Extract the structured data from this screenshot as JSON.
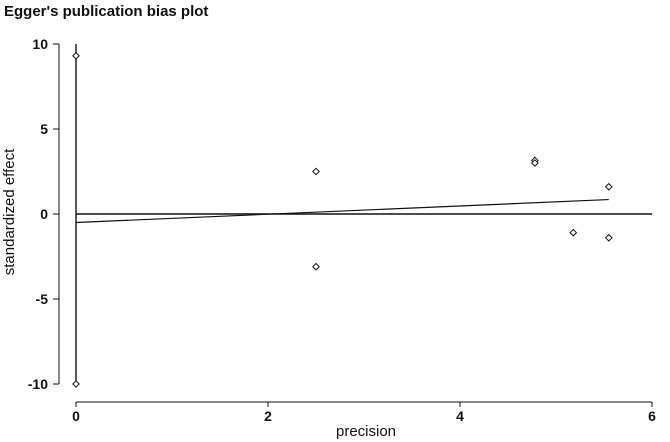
{
  "chart_data": {
    "type": "scatter",
    "title": "Egger's publication bias plot",
    "xlabel": "precision",
    "ylabel": "standardized effect",
    "xlim": [
      0,
      6
    ],
    "ylim": [
      -10,
      10
    ],
    "x_ticks": [
      0,
      2,
      4,
      6
    ],
    "y_ticks": [
      10,
      5,
      0,
      -5,
      -10
    ],
    "grid": false,
    "legend": "none",
    "points": [
      {
        "x": 0.0,
        "y": 9.3
      },
      {
        "x": 0.0,
        "y": -10.0
      },
      {
        "x": 2.5,
        "y": 2.5
      },
      {
        "x": 2.5,
        "y": -3.1
      },
      {
        "x": 4.78,
        "y": 3.15
      },
      {
        "x": 4.78,
        "y": 3.0
      },
      {
        "x": 5.18,
        "y": -1.1
      },
      {
        "x": 5.55,
        "y": 1.6
      },
      {
        "x": 5.55,
        "y": -1.4
      }
    ],
    "reference_line": {
      "y": 0
    },
    "regression_line": {
      "x": [
        0,
        5.55
      ],
      "y": [
        -0.5,
        0.85
      ]
    },
    "ci_line": {
      "x": 0,
      "y": [
        -10,
        10
      ]
    },
    "marker": "hollow-diamond",
    "color": "#111111"
  }
}
